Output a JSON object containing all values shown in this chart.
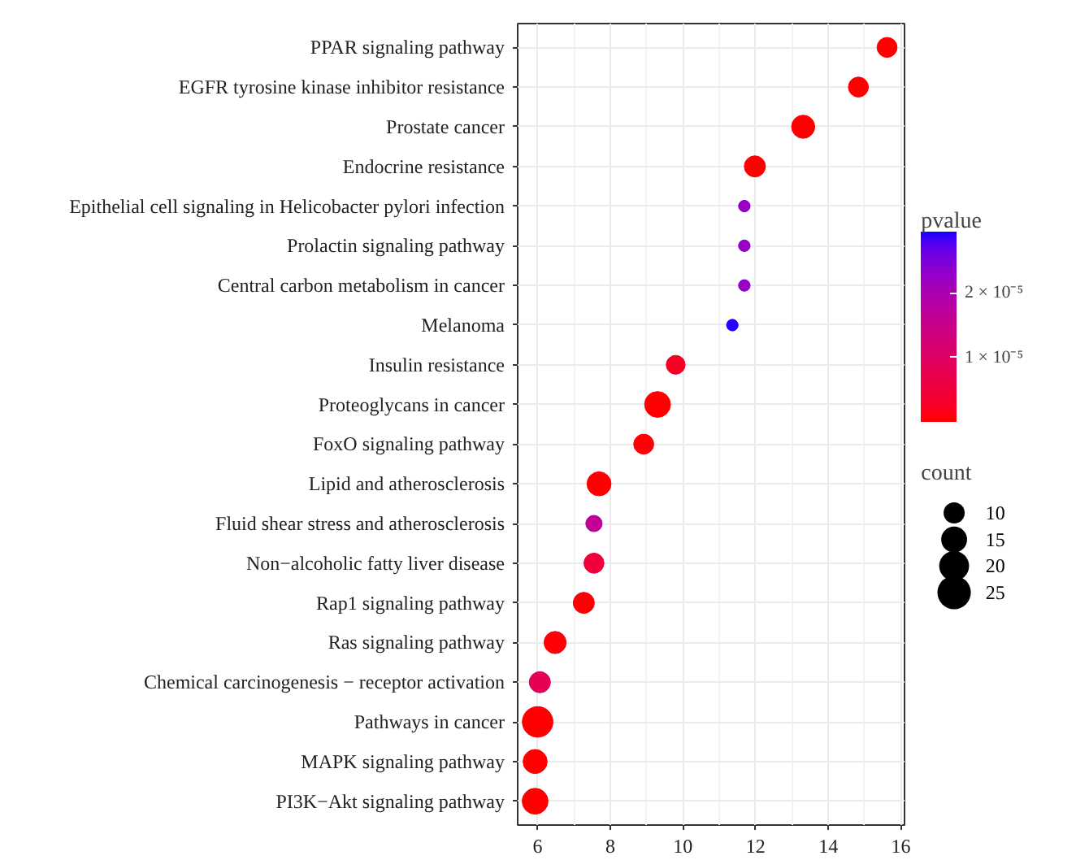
{
  "chart_data": {
    "type": "bubble",
    "categories": [
      "PPAR signaling pathway",
      "EGFR tyrosine kinase inhibitor resistance",
      "Prostate cancer",
      "Endocrine resistance",
      "Epithelial cell signaling in Helicobacter pylori infection",
      "Prolactin signaling pathway",
      "Central carbon metabolism in cancer",
      "Melanoma",
      "Insulin resistance",
      "Proteoglycans in cancer",
      "FoxO signaling pathway",
      "Lipid and atherosclerosis",
      "Fluid shear stress and atherosclerosis",
      "Non−alcoholic fatty liver disease",
      "Rap1 signaling pathway",
      "Ras signaling pathway",
      "Chemical carcinogenesis − receptor activation",
      "Pathways in cancer",
      "MAPK signaling pathway",
      "PI3K−Akt signaling pathway"
    ],
    "orientation": "horizontal",
    "values": [
      15.62,
      14.83,
      13.31,
      11.98,
      11.69,
      11.69,
      11.69,
      11.36,
      9.8,
      9.3,
      8.92,
      7.69,
      7.55,
      7.55,
      7.27,
      6.48,
      6.06,
      6.0,
      5.93,
      5.93
    ],
    "sizes": [
      9,
      9,
      12,
      10,
      3,
      3,
      3,
      3,
      8,
      15,
      9,
      13,
      6,
      9,
      10,
      11,
      10,
      21,
      13,
      15
    ],
    "size_legend": [
      10,
      15,
      20,
      25
    ],
    "cvalues": [
      1e-07,
      1e-07,
      1e-07,
      2e-07,
      2.2e-05,
      2.2e-05,
      2.2e-05,
      2.9e-05,
      2.5e-06,
      1e-07,
      3e-07,
      1e-07,
      1.6e-05,
      5e-06,
      2e-07,
      3e-07,
      8e-06,
      1e-07,
      1e-07,
      1e-07
    ],
    "colors": [
      "#ff0000",
      "#fe0002",
      "#ff0000",
      "#fe0004",
      "#7000d8",
      "#7000d8",
      "#7000d8",
      "#0000ff",
      "#f00020",
      "#ff0004",
      "#fc0008",
      "#ff0000",
      "#a800b8",
      "#e8003c",
      "#fc0006",
      "#fc0008",
      "#d80060",
      "#ff0000",
      "#ff0000",
      "#ff0000"
    ],
    "clabel": "pvalue",
    "legend_title": "count",
    "clim": [
      0,
      2.95e-05
    ],
    "cticks": [
      {
        "value": 1e-05,
        "label": "1 × 10⁻⁵"
      },
      {
        "value": 2e-05,
        "label": "2 × 10⁻⁵"
      }
    ],
    "xlim": [
      5.45,
      16.1
    ],
    "xticks": [
      6,
      8,
      10,
      12,
      14,
      16
    ],
    "grid": true
  }
}
